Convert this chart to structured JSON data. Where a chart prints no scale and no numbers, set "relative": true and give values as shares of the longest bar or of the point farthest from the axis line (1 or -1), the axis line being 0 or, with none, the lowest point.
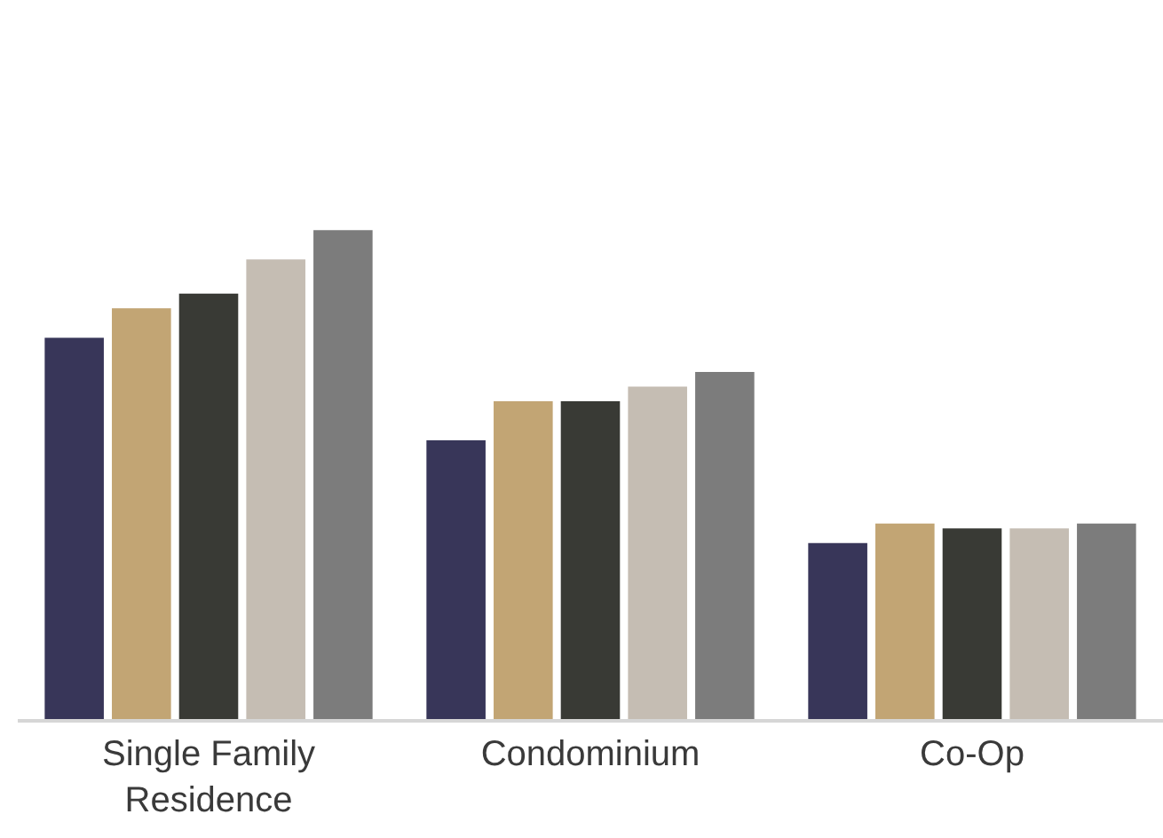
{
  "chart_data": {
    "type": "bar",
    "relative": true,
    "categories": [
      "Single Family\nResidence",
      "Condominium",
      "Co-Op"
    ],
    "series": [
      {
        "color": "#383659",
        "values": [
          0.78,
          0.57,
          0.36
        ]
      },
      {
        "color": "#c2a574",
        "values": [
          0.84,
          0.65,
          0.4
        ]
      },
      {
        "color": "#393a35",
        "values": [
          0.87,
          0.65,
          0.39
        ]
      },
      {
        "color": "#c5bdb3",
        "values": [
          0.94,
          0.68,
          0.39
        ]
      },
      {
        "color": "#7c7c7c",
        "values": [
          1,
          0.71,
          0.4
        ]
      }
    ]
  }
}
